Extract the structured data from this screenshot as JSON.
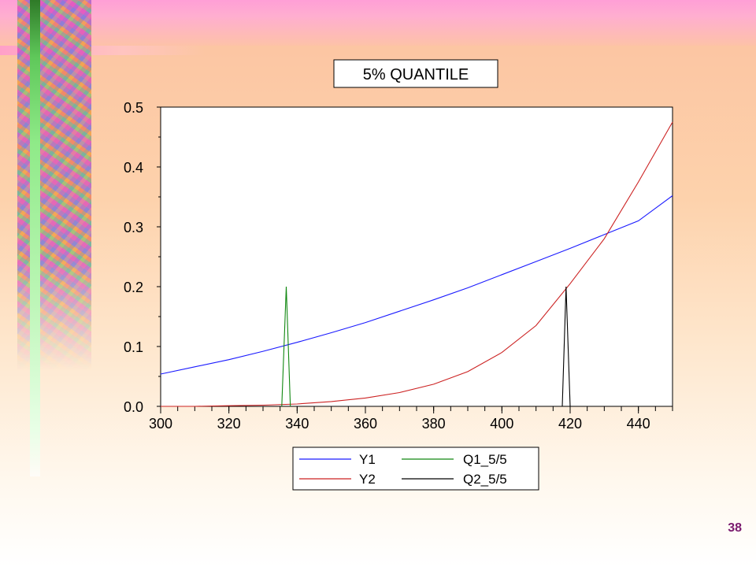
{
  "page_number": "38",
  "chart_data": {
    "type": "line",
    "title": "5% QUANTILE",
    "xlabel": "",
    "ylabel": "",
    "xlim": [
      300,
      450
    ],
    "ylim": [
      0,
      0.5
    ],
    "x_ticks": [
      "300",
      "320",
      "340",
      "360",
      "380",
      "400",
      "420",
      "440"
    ],
    "y_ticks": [
      "0.0",
      "0.1",
      "0.2",
      "0.3",
      "0.4",
      "0.5"
    ],
    "grid": false,
    "legend_position": "bottom-center",
    "series": [
      {
        "name": "Y1",
        "color": "#1a1aff",
        "x": [
          300,
          310,
          320,
          330,
          340,
          350,
          360,
          370,
          380,
          390,
          400,
          410,
          420,
          430,
          440,
          450
        ],
        "y": [
          0.054,
          0.066,
          0.078,
          0.092,
          0.107,
          0.123,
          0.14,
          0.159,
          0.178,
          0.198,
          0.22,
          0.242,
          0.264,
          0.287,
          0.31,
          0.352
        ]
      },
      {
        "name": "Y2",
        "color": "#cc2222",
        "x": [
          300,
          310,
          320,
          330,
          340,
          350,
          360,
          370,
          380,
          390,
          400,
          410,
          420,
          430,
          440,
          450
        ],
        "y": [
          0.0,
          0.0,
          0.001,
          0.002,
          0.004,
          0.008,
          0.014,
          0.023,
          0.037,
          0.058,
          0.09,
          0.135,
          0.205,
          0.28,
          0.375,
          0.475
        ]
      },
      {
        "name": "Q1_5/5",
        "color": "#118811",
        "x": [
          335.5,
          336.8,
          338.0
        ],
        "y": [
          0.0,
          0.2,
          0.0
        ]
      },
      {
        "name": "Q2_5/5",
        "color": "#000000",
        "x": [
          417.7,
          418.8,
          420.0
        ],
        "y": [
          0.0,
          0.2,
          0.0
        ]
      }
    ]
  }
}
